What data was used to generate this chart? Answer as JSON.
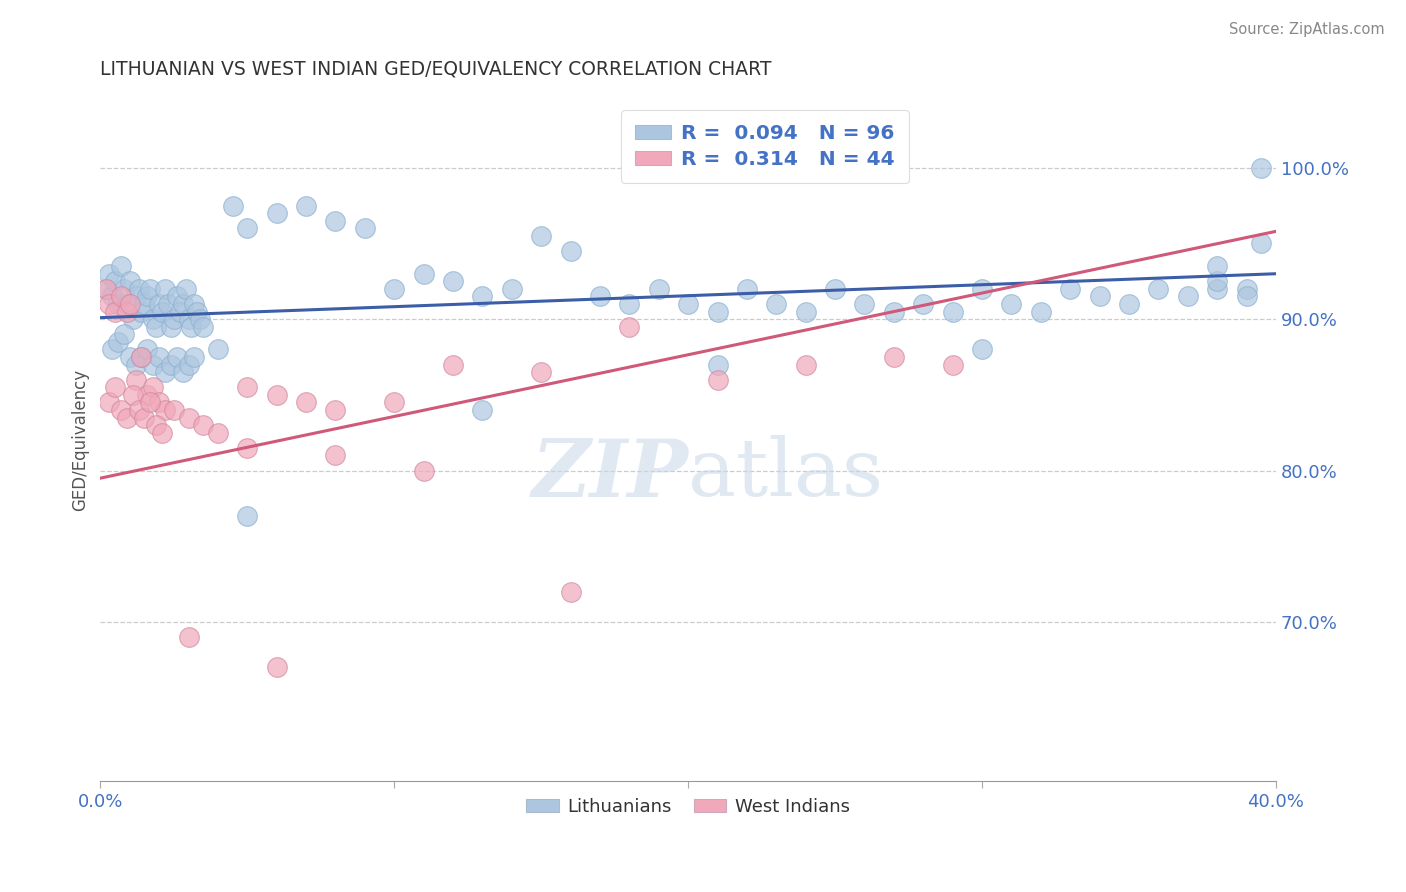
{
  "title": "LITHUANIAN VS WEST INDIAN GED/EQUIVALENCY CORRELATION CHART",
  "source": "Source: ZipAtlas.com",
  "ylabel": "GED/Equivalency",
  "yticks_labels": [
    "100.0%",
    "90.0%",
    "80.0%",
    "70.0%"
  ],
  "yticks_vals": [
    1.0,
    0.9,
    0.8,
    0.7
  ],
  "xmin": 0.0,
  "xmax": 0.4,
  "ymin": 0.595,
  "ymax": 1.045,
  "blue_color": "#adc6e0",
  "pink_color": "#f0a8ba",
  "blue_line_color": "#3c5ea8",
  "pink_line_color": "#d05878",
  "label_color": "#4472c4",
  "watermark_color": "#c8d8e8",
  "blue_trend_x0": 0.0,
  "blue_trend_y0": 0.901,
  "blue_trend_x1": 0.4,
  "blue_trend_y1": 0.93,
  "pink_trend_x0": 0.0,
  "pink_trend_y0": 0.795,
  "pink_trend_x1": 0.4,
  "pink_trend_y1": 0.958,
  "blue_x": [
    0.002,
    0.003,
    0.004,
    0.005,
    0.006,
    0.007,
    0.008,
    0.009,
    0.01,
    0.011,
    0.012,
    0.013,
    0.014,
    0.015,
    0.016,
    0.017,
    0.018,
    0.019,
    0.02,
    0.021,
    0.022,
    0.023,
    0.024,
    0.025,
    0.026,
    0.027,
    0.028,
    0.029,
    0.03,
    0.031,
    0.032,
    0.033,
    0.034,
    0.035,
    0.004,
    0.006,
    0.008,
    0.01,
    0.012,
    0.014,
    0.016,
    0.018,
    0.02,
    0.022,
    0.024,
    0.026,
    0.028,
    0.03,
    0.032,
    0.04,
    0.045,
    0.05,
    0.06,
    0.07,
    0.08,
    0.09,
    0.1,
    0.11,
    0.12,
    0.13,
    0.14,
    0.15,
    0.16,
    0.17,
    0.18,
    0.19,
    0.2,
    0.21,
    0.22,
    0.23,
    0.24,
    0.25,
    0.26,
    0.27,
    0.28,
    0.29,
    0.3,
    0.31,
    0.32,
    0.33,
    0.34,
    0.35,
    0.36,
    0.37,
    0.38,
    0.39,
    0.395,
    0.05,
    0.13,
    0.21,
    0.3,
    0.38,
    0.38,
    0.39,
    0.395
  ],
  "blue_y": [
    0.92,
    0.93,
    0.915,
    0.925,
    0.91,
    0.935,
    0.92,
    0.91,
    0.925,
    0.9,
    0.915,
    0.92,
    0.905,
    0.91,
    0.915,
    0.92,
    0.9,
    0.895,
    0.91,
    0.905,
    0.92,
    0.91,
    0.895,
    0.9,
    0.915,
    0.905,
    0.91,
    0.92,
    0.9,
    0.895,
    0.91,
    0.905,
    0.9,
    0.895,
    0.88,
    0.885,
    0.89,
    0.875,
    0.87,
    0.875,
    0.88,
    0.87,
    0.875,
    0.865,
    0.87,
    0.875,
    0.865,
    0.87,
    0.875,
    0.88,
    0.975,
    0.96,
    0.97,
    0.975,
    0.965,
    0.96,
    0.92,
    0.93,
    0.925,
    0.915,
    0.92,
    0.955,
    0.945,
    0.915,
    0.91,
    0.92,
    0.91,
    0.905,
    0.92,
    0.91,
    0.905,
    0.92,
    0.91,
    0.905,
    0.91,
    0.905,
    0.92,
    0.91,
    0.905,
    0.92,
    0.915,
    0.91,
    0.92,
    0.915,
    0.92,
    0.92,
    0.95,
    0.77,
    0.84,
    0.87,
    0.88,
    0.925,
    0.935,
    0.915,
    1.0
  ],
  "pink_x": [
    0.002,
    0.003,
    0.005,
    0.007,
    0.009,
    0.01,
    0.012,
    0.014,
    0.016,
    0.018,
    0.02,
    0.022,
    0.003,
    0.005,
    0.007,
    0.009,
    0.011,
    0.013,
    0.015,
    0.017,
    0.019,
    0.021,
    0.025,
    0.03,
    0.035,
    0.04,
    0.05,
    0.06,
    0.07,
    0.08,
    0.1,
    0.12,
    0.15,
    0.18,
    0.21,
    0.24,
    0.27,
    0.05,
    0.08,
    0.11,
    0.16,
    0.29,
    0.03,
    0.06
  ],
  "pink_y": [
    0.92,
    0.91,
    0.905,
    0.915,
    0.905,
    0.91,
    0.86,
    0.875,
    0.85,
    0.855,
    0.845,
    0.84,
    0.845,
    0.855,
    0.84,
    0.835,
    0.85,
    0.84,
    0.835,
    0.845,
    0.83,
    0.825,
    0.84,
    0.835,
    0.83,
    0.825,
    0.855,
    0.85,
    0.845,
    0.84,
    0.845,
    0.87,
    0.865,
    0.895,
    0.86,
    0.87,
    0.875,
    0.815,
    0.81,
    0.8,
    0.72,
    0.87,
    0.69,
    0.67
  ]
}
